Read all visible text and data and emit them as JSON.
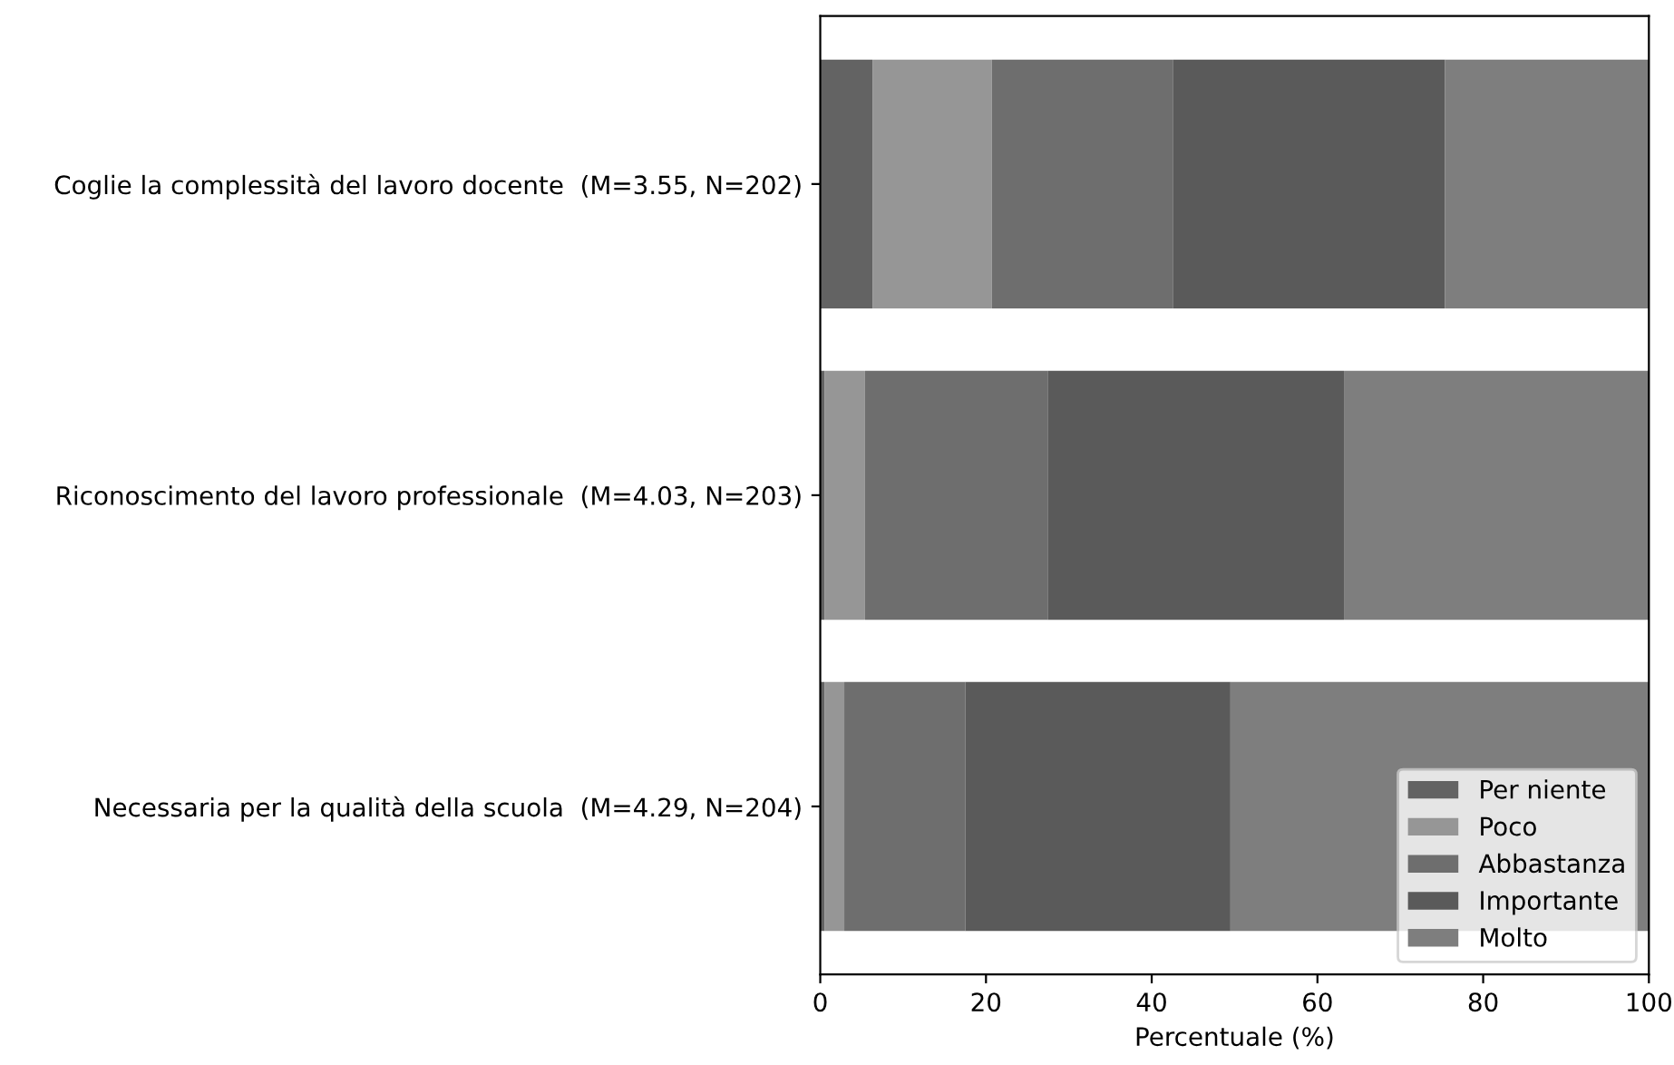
{
  "chart_data": {
    "type": "bar",
    "orientation": "horizontal",
    "stacked": true,
    "xlabel": "Percentuale (%)",
    "categories": [
      "Coglie la complessità del lavoro docente  (M=3.55, N=202)",
      "Riconoscimento del lavoro professionale  (M=4.03, N=203)",
      "Necessaria per la qualità della scuola  (M=4.29, N=204)"
    ],
    "series": [
      {
        "name": "Per niente",
        "color": "#636363",
        "values": [
          6.3,
          0.5,
          0.5
        ]
      },
      {
        "name": "Poco",
        "color": "#969696",
        "values": [
          14.4,
          4.9,
          2.4
        ]
      },
      {
        "name": "Abbastanza",
        "color": "#6e6e6e",
        "values": [
          21.9,
          22.1,
          14.6
        ]
      },
      {
        "name": "Importante",
        "color": "#5a5a5a",
        "values": [
          32.8,
          35.7,
          32.0
        ]
      },
      {
        "name": "Molto",
        "color": "#7e7e7e",
        "values": [
          24.6,
          36.8,
          50.5
        ]
      }
    ],
    "xlim": [
      0,
      100
    ],
    "xticks": [
      0,
      20,
      40,
      60,
      80,
      100
    ],
    "legend": "lower right",
    "grid": false
  }
}
